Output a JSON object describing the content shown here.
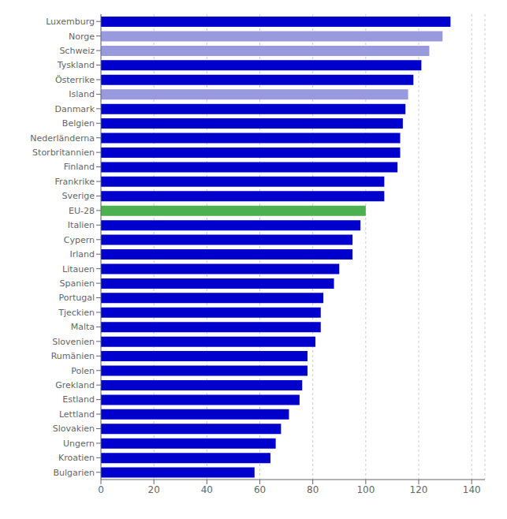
{
  "chart_data": {
    "type": "bar",
    "orientation": "horizontal",
    "categories": [
      "Luxemburg",
      "Norge",
      "Schweiz",
      "Tyskland",
      "Österrike",
      "Island",
      "Danmark",
      "Belgien",
      "Nederländerna",
      "Storbritannien",
      "Finland",
      "Frankrike",
      "Sverige",
      "EU-28",
      "Italien",
      "Cypern",
      "Irland",
      "Litauen",
      "Spanien",
      "Portugal",
      "Tjeckien",
      "Malta",
      "Slovenien",
      "Rumänien",
      "Polen",
      "Grekland",
      "Estland",
      "Lettland",
      "Slovakien",
      "Ungern",
      "Kroatien",
      "Bulgarien"
    ],
    "values": [
      132,
      129,
      124,
      121,
      118,
      116,
      115,
      114,
      113,
      113,
      112,
      107,
      107,
      100,
      98,
      95,
      95,
      90,
      88,
      84,
      83,
      83,
      81,
      78,
      78,
      76,
      75,
      71,
      68,
      66,
      64,
      58
    ],
    "colors": [
      "#0000CC",
      "#9999DD",
      "#9999DD",
      "#0000CC",
      "#0000CC",
      "#9999DD",
      "#0000CC",
      "#0000CC",
      "#0000CC",
      "#0000CC",
      "#0000CC",
      "#0000CC",
      "#0000CC",
      "#4CAF50",
      "#0000CC",
      "#0000CC",
      "#0000CC",
      "#0000CC",
      "#0000CC",
      "#0000CC",
      "#0000CC",
      "#0000CC",
      "#0000CC",
      "#0000CC",
      "#0000CC",
      "#0000CC",
      "#0000CC",
      "#0000CC",
      "#0000CC",
      "#0000CC",
      "#0000CC",
      "#0000CC"
    ],
    "xlim": [
      0,
      145
    ],
    "xticks": [
      0,
      20,
      40,
      60,
      80,
      100,
      120,
      140
    ],
    "grid": true
  }
}
